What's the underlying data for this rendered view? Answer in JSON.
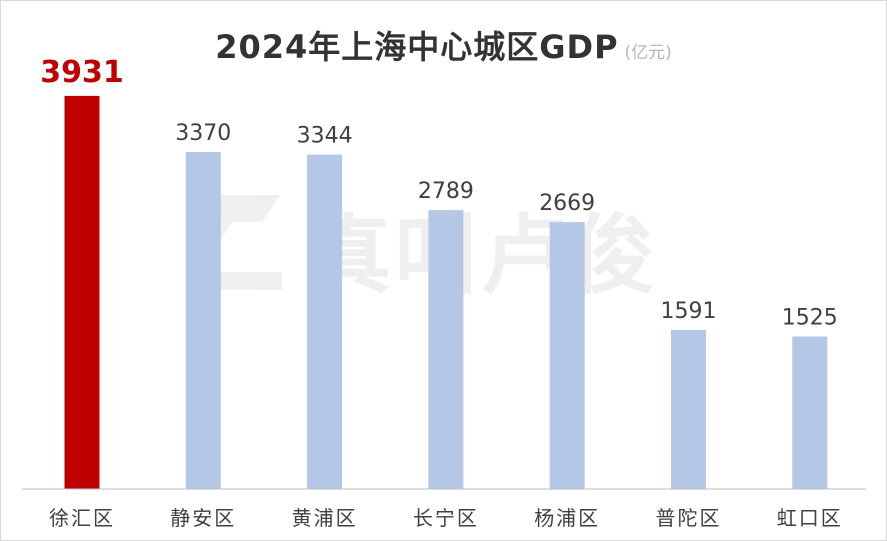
{
  "chart_data": {
    "type": "bar",
    "title": "2024年上海中心城区GDP",
    "unit": "(亿元)",
    "categories": [
      "徐汇区",
      "静安区",
      "黄浦区",
      "长宁区",
      "杨浦区",
      "普陀区",
      "虹口区"
    ],
    "values": [
      3931,
      3370,
      3344,
      2789,
      2669,
      1591,
      1525
    ],
    "value_labels": [
      "3931",
      "3370",
      "3344",
      "2789",
      "2669",
      "1591",
      "1525"
    ],
    "ylim": [
      0,
      4000
    ],
    "grid": false,
    "legend": "none",
    "colors": {
      "highlight": "#c00000",
      "bar": "#b4c7e7",
      "label": "#404040",
      "axis": "#bfbfbf"
    },
    "highlight_index": 0
  },
  "watermark": {
    "logo_icon": "z-logo-icon",
    "text": "真叫卢俊"
  }
}
